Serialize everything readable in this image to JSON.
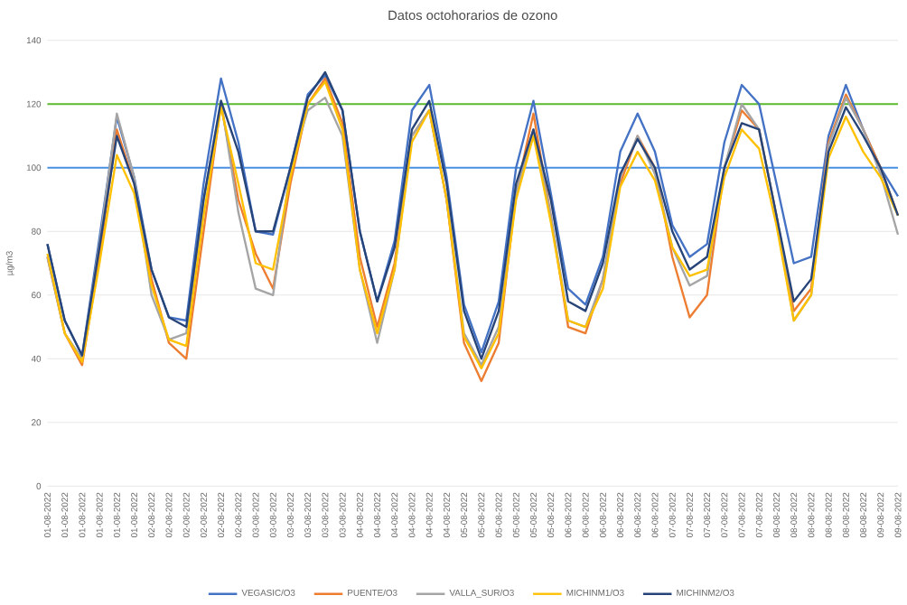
{
  "chart_data": {
    "type": "line",
    "title": "Datos octohorarios de ozono",
    "ylabel": "µg/m3",
    "categories": [
      "01-08-2022",
      "01-08-2022",
      "01-08-2022",
      "01-08-2022",
      "01-08-2022",
      "01-08-2022",
      "02-08-2022",
      "02-08-2022",
      "02-08-2022",
      "02-08-2022",
      "02-08-2022",
      "02-08-2022",
      "03-08-2022",
      "03-08-2022",
      "03-08-2022",
      "03-08-2022",
      "03-08-2022",
      "03-08-2022",
      "04-08-2022",
      "04-08-2022",
      "04-08-2022",
      "04-08-2022",
      "04-08-2022",
      "04-08-2022",
      "05-08-2022",
      "05-08-2022",
      "05-08-2022",
      "05-08-2022",
      "05-08-2022",
      "05-08-2022",
      "06-08-2022",
      "06-08-2022",
      "06-08-2022",
      "06-08-2022",
      "06-08-2022",
      "06-08-2022",
      "07-08-2022",
      "07-08-2022",
      "07-08-2022",
      "07-08-2022",
      "07-08-2022",
      "07-08-2022",
      "08-08-2022",
      "08-08-2022",
      "08-08-2022",
      "08-08-2022",
      "08-08-2022",
      "08-08-2022",
      "09-08-2022",
      "09-08-2022"
    ],
    "series": [
      {
        "name": "VEGASIC/O3",
        "color": "#4472c4",
        "values": [
          76,
          52,
          41,
          78,
          116,
          97,
          68,
          53,
          52,
          95,
          128,
          108,
          80,
          79,
          100,
          123,
          129,
          118,
          80,
          58,
          77,
          118,
          126,
          97,
          57,
          42,
          58,
          100,
          121,
          92,
          62,
          57,
          72,
          105,
          117,
          105,
          82,
          72,
          76,
          108,
          126,
          120,
          95,
          70,
          72,
          110,
          126,
          112,
          100,
          91
        ]
      },
      {
        "name": "PUENTE/O3",
        "color": "#ed7d31",
        "values": [
          72,
          48,
          38,
          72,
          112,
          95,
          65,
          45,
          40,
          80,
          120,
          90,
          73,
          62,
          95,
          120,
          128,
          114,
          72,
          50,
          70,
          110,
          118,
          90,
          45,
          33,
          45,
          92,
          117,
          85,
          50,
          48,
          65,
          95,
          110,
          100,
          72,
          53,
          60,
          100,
          118,
          112,
          85,
          55,
          62,
          108,
          123,
          112,
          100,
          85
        ]
      },
      {
        "name": "VALLA_SUR/O3",
        "color": "#a5a5a5",
        "values": [
          72,
          48,
          40,
          76,
          117,
          97,
          60,
          46,
          48,
          90,
          121,
          86,
          62,
          60,
          100,
          118,
          122,
          110,
          68,
          45,
          68,
          110,
          118,
          90,
          48,
          38,
          50,
          92,
          112,
          85,
          52,
          50,
          65,
          97,
          110,
          98,
          75,
          63,
          66,
          100,
          120,
          112,
          85,
          52,
          60,
          107,
          122,
          112,
          98,
          79
        ]
      },
      {
        "name": "MICHINM1/O3",
        "color": "#ffc000",
        "values": [
          73,
          48,
          39,
          70,
          104,
          92,
          63,
          46,
          44,
          85,
          119,
          95,
          70,
          68,
          97,
          120,
          127,
          112,
          68,
          48,
          68,
          108,
          118,
          90,
          47,
          37,
          48,
          90,
          110,
          83,
          52,
          50,
          62,
          94,
          105,
          96,
          75,
          66,
          68,
          97,
          112,
          106,
          82,
          52,
          60,
          103,
          116,
          105,
          97,
          85
        ]
      },
      {
        "name": "MICHINM2/O3",
        "color": "#264478",
        "values": [
          76,
          52,
          41,
          75,
          110,
          95,
          68,
          53,
          50,
          90,
          121,
          105,
          80,
          80,
          100,
          122,
          130,
          118,
          80,
          58,
          75,
          112,
          121,
          95,
          55,
          40,
          55,
          95,
          112,
          90,
          58,
          55,
          70,
          98,
          109,
          100,
          80,
          68,
          72,
          100,
          114,
          112,
          85,
          58,
          65,
          105,
          119,
          110,
          100,
          85
        ]
      }
    ],
    "ylim": [
      0,
      140
    ],
    "yticks": [
      0,
      20,
      40,
      60,
      80,
      100,
      120,
      140
    ],
    "grid": "y",
    "legend": "bottom",
    "ref_lines": [
      {
        "axis": "y",
        "value": 100,
        "color": "#4a90e2"
      },
      {
        "axis": "y",
        "value": 120,
        "color": "#5cb82e"
      }
    ]
  }
}
